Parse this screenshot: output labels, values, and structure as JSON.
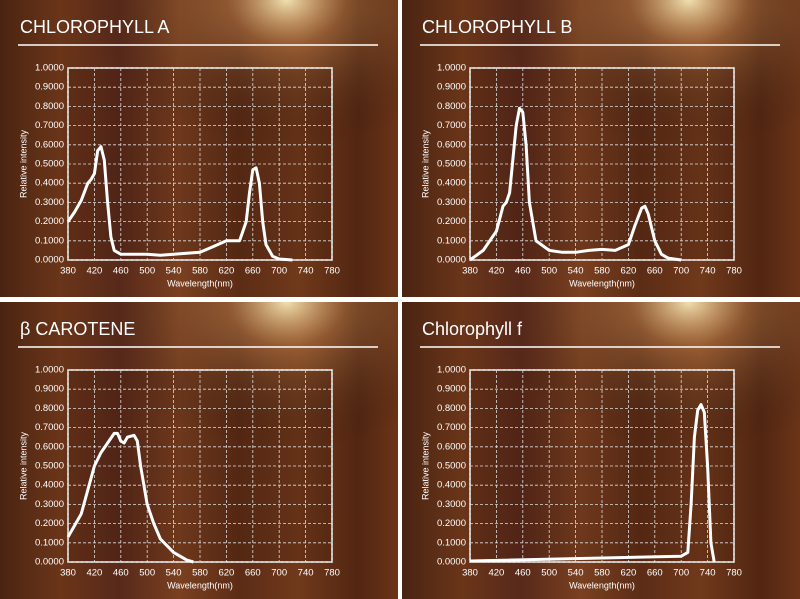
{
  "chart_data": [
    {
      "type": "line",
      "title": "CHLOROPHYLL A",
      "xlabel": "Wavelength(nm)",
      "ylabel": "Relative intensity",
      "xlim": [
        380,
        780
      ],
      "ylim": [
        0,
        1
      ],
      "grid": true,
      "color": "#ffffff",
      "xticks": [
        380,
        420,
        460,
        500,
        540,
        580,
        620,
        660,
        700,
        740,
        780
      ],
      "yticks": [
        {
          "value": 0,
          "label": "0.0000"
        },
        {
          "value": 0.1,
          "label": "0.1000"
        },
        {
          "value": 0.2,
          "label": "0.2000"
        },
        {
          "value": 0.3,
          "label": "0.3000"
        },
        {
          "value": 0.4,
          "label": "0.4000"
        },
        {
          "value": 0.5,
          "label": "0.5000"
        },
        {
          "value": 0.6,
          "label": "0.6000"
        },
        {
          "value": 0.7,
          "label": "0.7000"
        },
        {
          "value": 0.8,
          "label": "0.8000"
        },
        {
          "value": 0.9,
          "label": "0.9000"
        },
        {
          "value": 1,
          "label": "1.0000"
        }
      ],
      "x": [
        380,
        390,
        400,
        410,
        415,
        420,
        425,
        430,
        435,
        440,
        445,
        450,
        460,
        480,
        500,
        520,
        540,
        560,
        580,
        600,
        620,
        640,
        650,
        655,
        660,
        665,
        670,
        675,
        680,
        690,
        700,
        720
      ],
      "values": [
        0.2,
        0.25,
        0.31,
        0.4,
        0.42,
        0.45,
        0.57,
        0.59,
        0.52,
        0.3,
        0.12,
        0.05,
        0.03,
        0.03,
        0.03,
        0.025,
        0.03,
        0.035,
        0.04,
        0.07,
        0.1,
        0.1,
        0.2,
        0.35,
        0.47,
        0.48,
        0.4,
        0.2,
        0.08,
        0.02,
        0.005,
        0
      ]
    },
    {
      "type": "line",
      "title": "CHLOROPHYLL B",
      "xlabel": "Wavelength(nm)",
      "ylabel": "Relative intensity",
      "xlim": [
        380,
        780
      ],
      "ylim": [
        0,
        1
      ],
      "grid": true,
      "color": "#ffffff",
      "xticks": [
        380,
        420,
        460,
        500,
        540,
        580,
        620,
        660,
        700,
        740,
        780
      ],
      "yticks": [
        {
          "value": 0,
          "label": "0.0000"
        },
        {
          "value": 0.1,
          "label": "0.1000"
        },
        {
          "value": 0.2,
          "label": "0.2000"
        },
        {
          "value": 0.3,
          "label": "0.3000"
        },
        {
          "value": 0.4,
          "label": "0.4000"
        },
        {
          "value": 0.5,
          "label": "0.5000"
        },
        {
          "value": 0.6,
          "label": "0.6000"
        },
        {
          "value": 0.7,
          "label": "0.7000"
        },
        {
          "value": 0.8,
          "label": "0.8000"
        },
        {
          "value": 0.9,
          "label": "0.9000"
        },
        {
          "value": 1,
          "label": "1.0000"
        }
      ],
      "x": [
        380,
        400,
        420,
        430,
        435,
        440,
        450,
        455,
        460,
        465,
        470,
        480,
        500,
        520,
        540,
        560,
        580,
        600,
        620,
        630,
        640,
        645,
        650,
        660,
        670,
        680,
        700
      ],
      "values": [
        0,
        0.05,
        0.15,
        0.28,
        0.3,
        0.35,
        0.7,
        0.79,
        0.77,
        0.6,
        0.3,
        0.1,
        0.05,
        0.04,
        0.04,
        0.05,
        0.055,
        0.05,
        0.08,
        0.18,
        0.27,
        0.28,
        0.24,
        0.1,
        0.03,
        0.01,
        0
      ]
    },
    {
      "type": "line",
      "title": "β CAROTENE",
      "xlabel": "Wavelength(nm)",
      "ylabel": "Relative intensity",
      "xlim": [
        380,
        780
      ],
      "ylim": [
        0,
        1
      ],
      "grid": true,
      "color": "#ffffff",
      "xticks": [
        380,
        420,
        460,
        500,
        540,
        580,
        620,
        660,
        700,
        740,
        780
      ],
      "yticks": [
        {
          "value": 0,
          "label": "0.0000"
        },
        {
          "value": 0.1,
          "label": "0.1000"
        },
        {
          "value": 0.2,
          "label": "0.2000"
        },
        {
          "value": 0.3,
          "label": "0.3000"
        },
        {
          "value": 0.4,
          "label": "0.4000"
        },
        {
          "value": 0.5,
          "label": "0.5000"
        },
        {
          "value": 0.6,
          "label": "0.6000"
        },
        {
          "value": 0.7,
          "label": "0.7000"
        },
        {
          "value": 0.8,
          "label": "0.8000"
        },
        {
          "value": 0.9,
          "label": "0.9000"
        },
        {
          "value": 1,
          "label": "1.0000"
        }
      ],
      "x": [
        380,
        400,
        420,
        430,
        440,
        450,
        455,
        460,
        465,
        470,
        480,
        485,
        490,
        500,
        510,
        520,
        540,
        560,
        570
      ],
      "values": [
        0.13,
        0.25,
        0.5,
        0.57,
        0.62,
        0.67,
        0.67,
        0.63,
        0.62,
        0.65,
        0.66,
        0.63,
        0.5,
        0.3,
        0.2,
        0.12,
        0.05,
        0.01,
        0
      ]
    },
    {
      "type": "line",
      "title": "Chlorophyll f",
      "xlabel": "Wavelength(nm)",
      "ylabel": "Relative intensity",
      "xlim": [
        380,
        780
      ],
      "ylim": [
        0,
        1
      ],
      "grid": true,
      "color": "#ffffff",
      "xticks": [
        380,
        420,
        460,
        500,
        540,
        580,
        620,
        660,
        700,
        740,
        780
      ],
      "yticks": [
        {
          "value": 0,
          "label": "0.0000"
        },
        {
          "value": 0.1,
          "label": "0.1000"
        },
        {
          "value": 0.2,
          "label": "0.2000"
        },
        {
          "value": 0.3,
          "label": "0.3000"
        },
        {
          "value": 0.4,
          "label": "0.4000"
        },
        {
          "value": 0.5,
          "label": "0.5000"
        },
        {
          "value": 0.6,
          "label": "0.6000"
        },
        {
          "value": 0.7,
          "label": "0.7000"
        },
        {
          "value": 0.8,
          "label": "0.8000"
        },
        {
          "value": 0.9,
          "label": "0.9000"
        },
        {
          "value": 1,
          "label": "1.0000"
        }
      ],
      "x": [
        380,
        700,
        710,
        715,
        720,
        725,
        730,
        735,
        740,
        745,
        750
      ],
      "values": [
        0.005,
        0.03,
        0.05,
        0.3,
        0.65,
        0.79,
        0.82,
        0.78,
        0.5,
        0.1,
        0
      ]
    }
  ]
}
